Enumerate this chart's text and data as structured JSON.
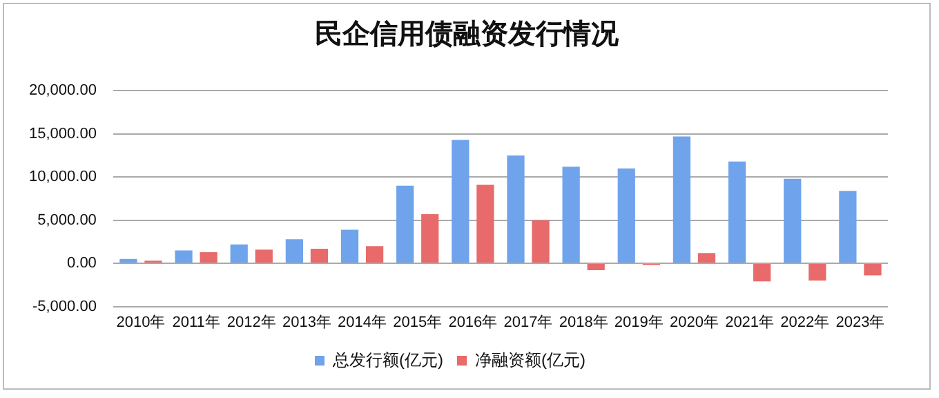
{
  "chart_data": {
    "type": "bar",
    "title": "民企信用债融资发行情况",
    "categories": [
      "2010年",
      "2011年",
      "2012年",
      "2013年",
      "2014年",
      "2015年",
      "2016年",
      "2017年",
      "2018年",
      "2019年",
      "2020年",
      "2021年",
      "2022年",
      "2023年"
    ],
    "series": [
      {
        "name": "总发行额(亿元)",
        "color": "#6fa3ec",
        "values": [
          500,
          1500,
          2200,
          2800,
          3900,
          9000,
          14300,
          12500,
          11200,
          11000,
          14700,
          11800,
          9800,
          8400
        ]
      },
      {
        "name": "净融资额(亿元)",
        "color": "#e86a6a",
        "values": [
          300,
          1300,
          1600,
          1700,
          2000,
          5700,
          9100,
          5000,
          -800,
          -200,
          1200,
          -2100,
          -2000,
          -1400
        ]
      }
    ],
    "ylim": [
      -5000,
      20000
    ],
    "yticks": [
      {
        "value": -5000,
        "label": "-5,000.00"
      },
      {
        "value": 0,
        "label": "0.00"
      },
      {
        "value": 5000,
        "label": "5,000.00"
      },
      {
        "value": 10000,
        "label": "10,000.00"
      },
      {
        "value": 15000,
        "label": "15,000.00"
      },
      {
        "value": 20000,
        "label": "20,000.00"
      }
    ],
    "grid": "y",
    "legend": "bottom"
  }
}
